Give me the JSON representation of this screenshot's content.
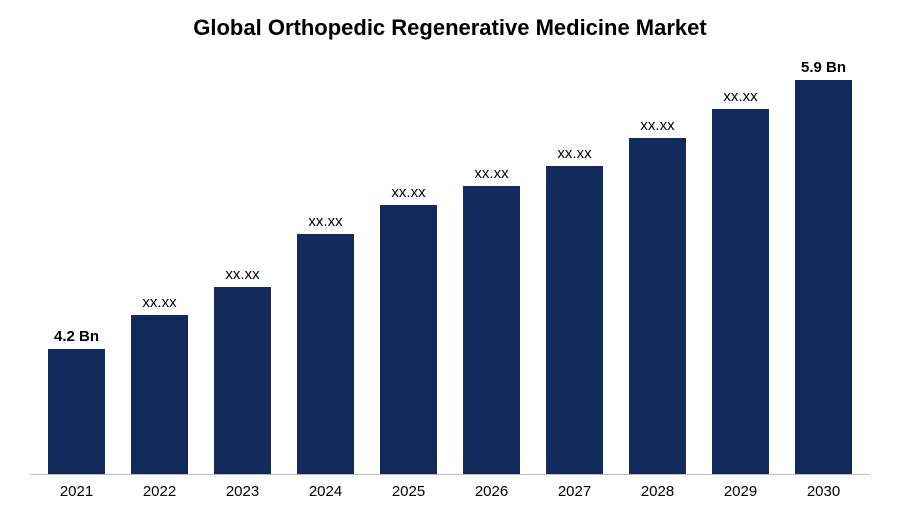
{
  "chart": {
    "type": "bar",
    "title": "Global Orthopedic Regenerative Medicine Market",
    "title_fontsize": 22,
    "title_fontweight": "bold",
    "background_color": "#ffffff",
    "axis_line_color": "#bfbfbf",
    "bar_color": "#122a5c",
    "bar_width_ratio": 0.68,
    "label_fontsize": 15,
    "xtick_fontsize": 15,
    "ylim": [
      0,
      440
    ],
    "categories": [
      "2021",
      "2022",
      "2023",
      "2024",
      "2025",
      "2026",
      "2027",
      "2028",
      "2029",
      "2030"
    ],
    "values": [
      130,
      165,
      195,
      250,
      280,
      300,
      320,
      350,
      380,
      410
    ],
    "value_labels": [
      "4.2 Bn",
      "xx.xx",
      "xx.xx",
      "xx.xx",
      "xx.xx",
      "xx.xx",
      "xx.xx",
      "xx.xx",
      "xx.xx",
      "5.9 Bn"
    ],
    "bold_labels": [
      true,
      false,
      false,
      false,
      false,
      false,
      false,
      false,
      false,
      true
    ]
  }
}
